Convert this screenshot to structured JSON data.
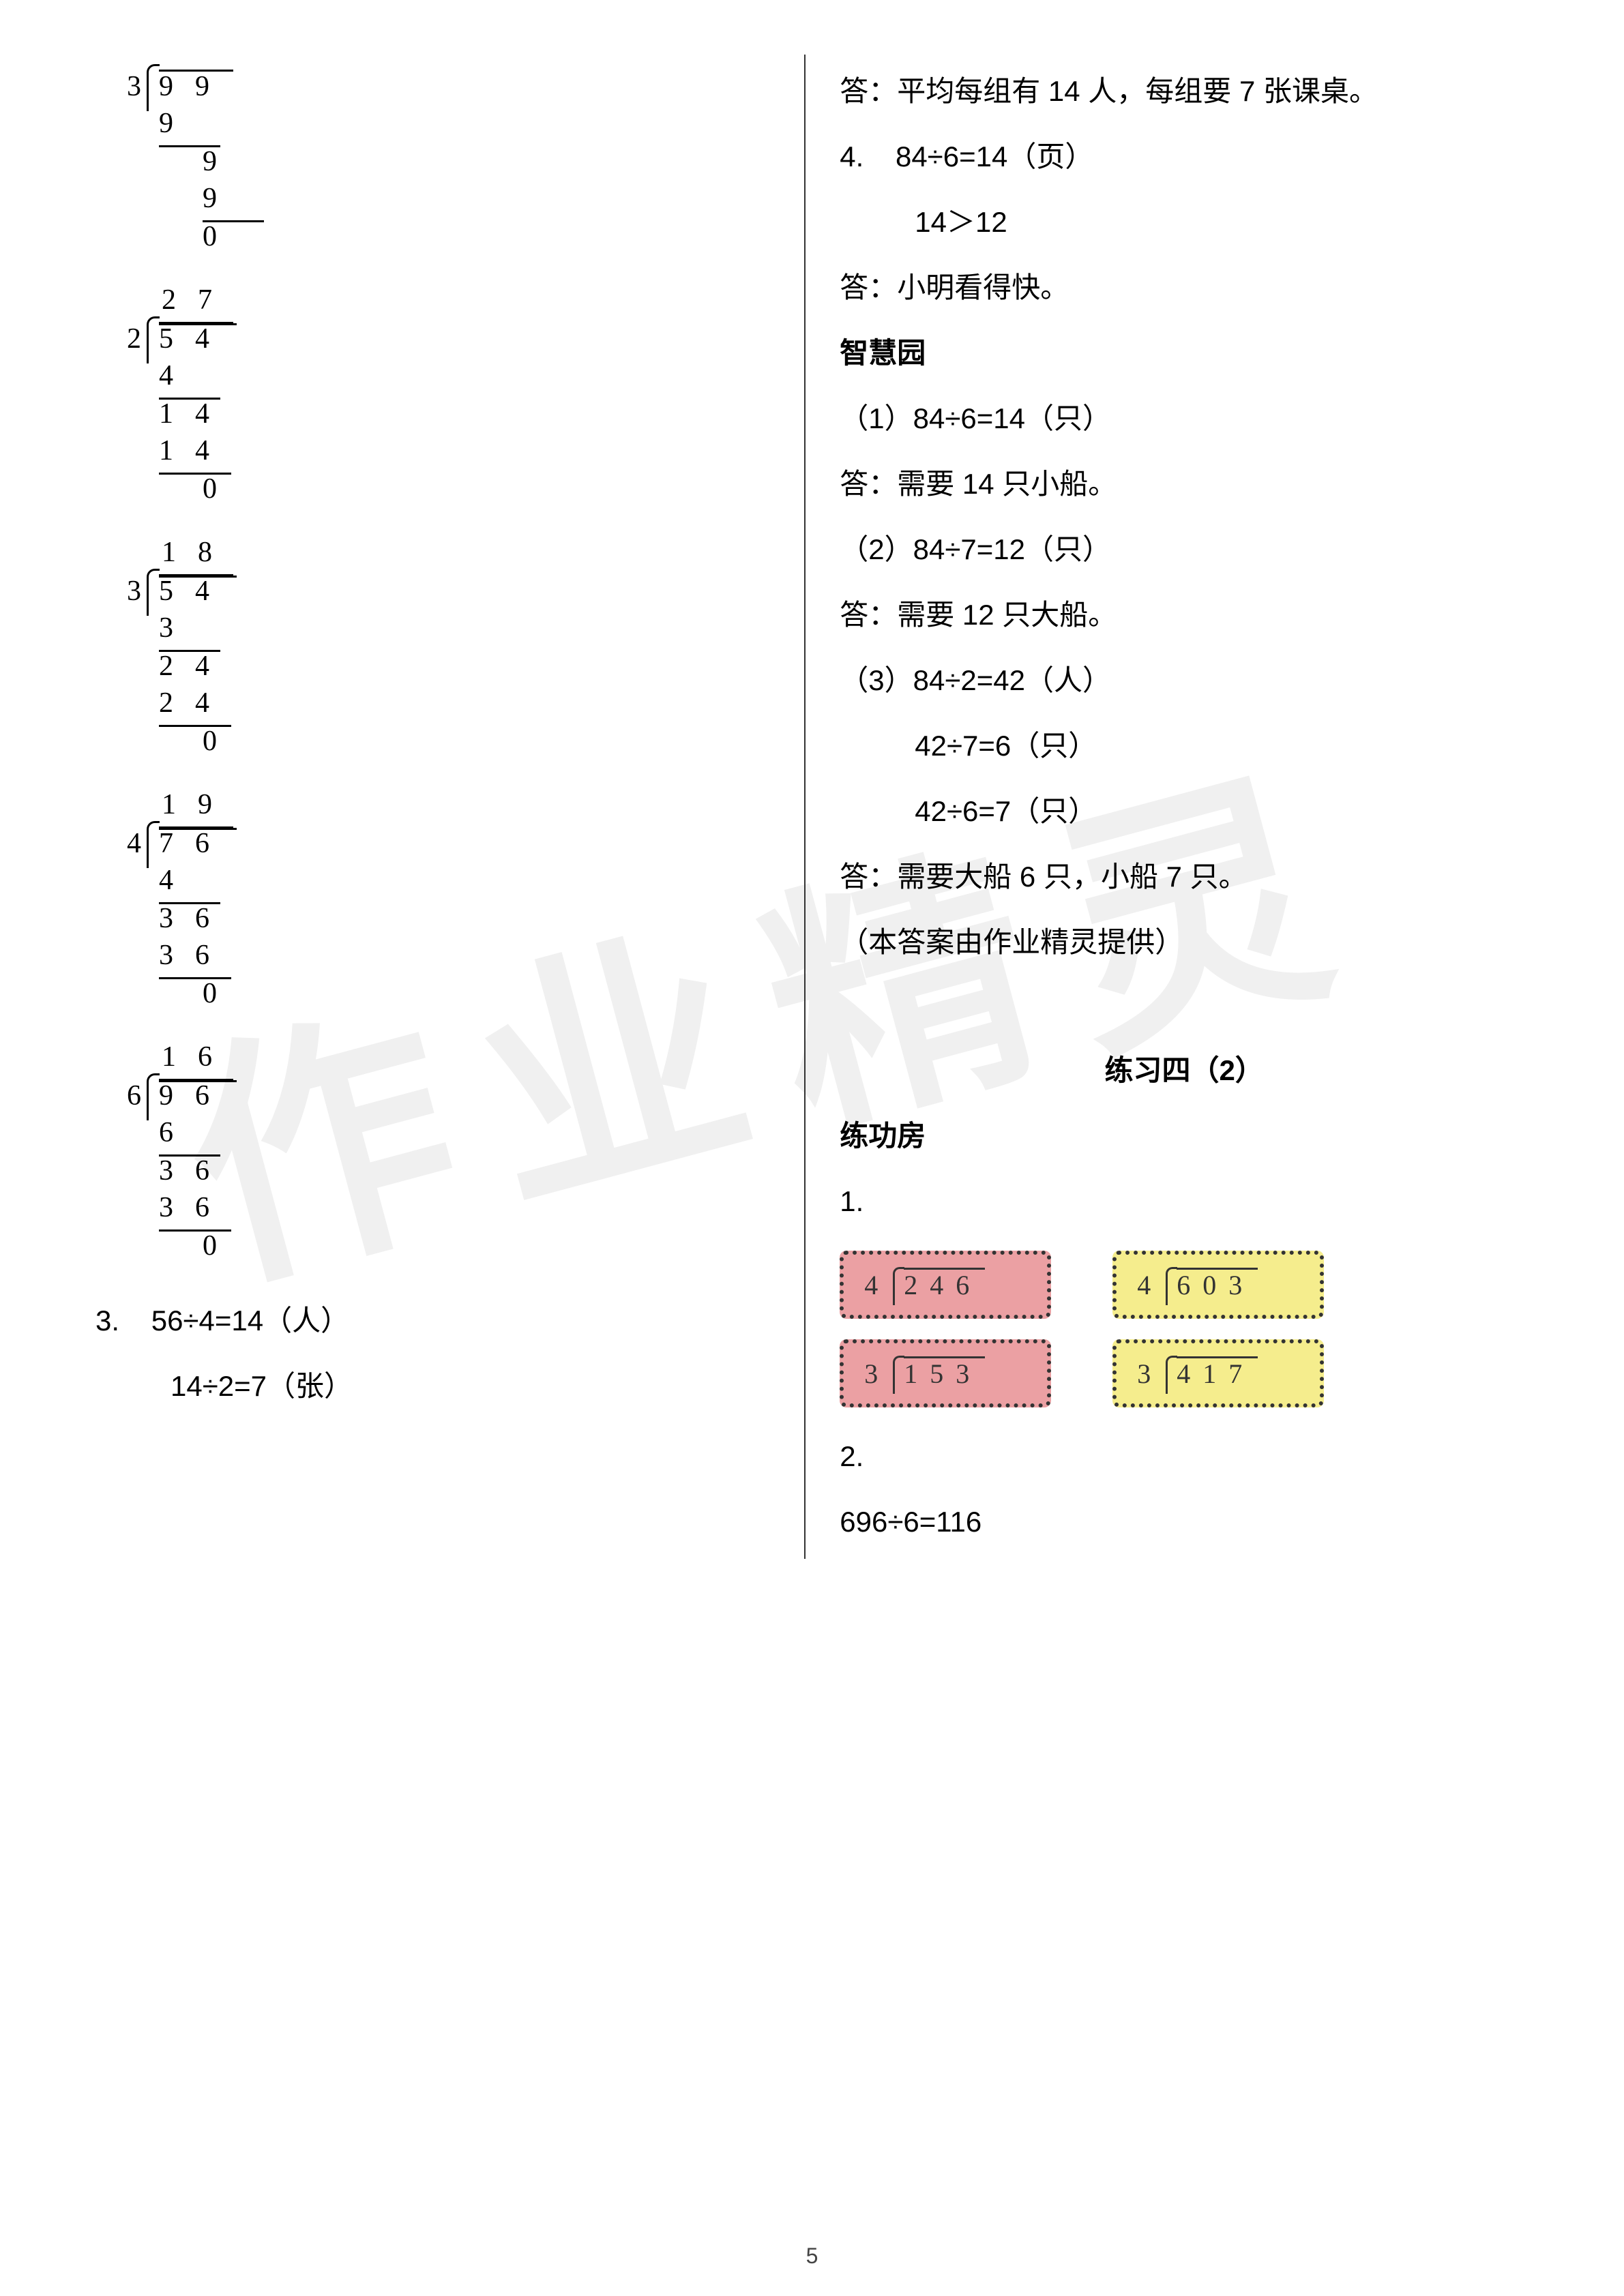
{
  "watermark": "作业精灵",
  "pageNumber": "5",
  "leftColumn": {
    "longDivisions": [
      {
        "divisor": "3",
        "dividend": "99",
        "quotientDisplay": "",
        "work": [
          {
            "text": "9",
            "indent": 0,
            "underline": true
          },
          {
            "text": "9",
            "indent": 1,
            "underline": false
          },
          {
            "text": "9",
            "indent": 1,
            "underline": true
          },
          {
            "text": "0",
            "indent": 1,
            "underline": false
          }
        ]
      },
      {
        "divisor": "2",
        "dividend": "54",
        "quotientDisplay": "27",
        "work": [
          {
            "text": "4",
            "indent": 0,
            "underline": true
          },
          {
            "text": "14",
            "indent": 0,
            "underline": false
          },
          {
            "text": "14",
            "indent": 0,
            "underline": true
          },
          {
            "text": "0",
            "indent": 1,
            "underline": false
          }
        ]
      },
      {
        "divisor": "3",
        "dividend": "54",
        "quotientDisplay": "18",
        "work": [
          {
            "text": "3",
            "indent": 0,
            "underline": true
          },
          {
            "text": "24",
            "indent": 0,
            "underline": false
          },
          {
            "text": "24",
            "indent": 0,
            "underline": true
          },
          {
            "text": "0",
            "indent": 1,
            "underline": false
          }
        ]
      },
      {
        "divisor": "4",
        "dividend": "76",
        "quotientDisplay": "19",
        "work": [
          {
            "text": "4",
            "indent": 0,
            "underline": true
          },
          {
            "text": "36",
            "indent": 0,
            "underline": false
          },
          {
            "text": "36",
            "indent": 0,
            "underline": true
          },
          {
            "text": "0",
            "indent": 1,
            "underline": false
          }
        ]
      },
      {
        "divisor": "6",
        "dividend": "96",
        "quotientDisplay": "16",
        "work": [
          {
            "text": "6",
            "indent": 0,
            "underline": true
          },
          {
            "text": "36",
            "indent": 0,
            "underline": false
          },
          {
            "text": "36",
            "indent": 0,
            "underline": true
          },
          {
            "text": "0",
            "indent": 1,
            "underline": false
          }
        ]
      }
    ],
    "problem3": {
      "label": "3.",
      "line1": "56÷4=14（人）",
      "line2": "14÷2=7（张）"
    }
  },
  "rightColumn": {
    "answer1": "答：平均每组有 14 人，每组要 7 张课桌。",
    "problem4": {
      "label": "4.",
      "line1": "84÷6=14（页）",
      "line2": "14＞12",
      "answer": "答：小明看得快。"
    },
    "sectionTitle1": "智慧园",
    "wisdom": {
      "item1_eq": "（1）84÷6=14（只）",
      "item1_ans": "答：需要 14 只小船。",
      "item2_eq": "（2）84÷7=12（只）",
      "item2_ans": "答：需要 12 只大船。",
      "item3_eq": "（3）84÷2=42（人）",
      "item3_sub1": "42÷7=6（只）",
      "item3_sub2": "42÷6=7（只）",
      "item3_ans": "答：需要大船 6 只，小船 7 只。"
    },
    "credit": "（本答案由作业精灵提供）",
    "practiceTitle": "练习四（2）",
    "sectionTitle2": "练功房",
    "q1Label": "1.",
    "divisionBoxes": [
      {
        "divisor": "4",
        "dividend": "246",
        "color": "pink"
      },
      {
        "divisor": "4",
        "dividend": "603",
        "color": "yellow"
      },
      {
        "divisor": "3",
        "dividend": "153",
        "color": "pink"
      },
      {
        "divisor": "3",
        "dividend": "417",
        "color": "yellow"
      }
    ],
    "q2Label": "2.",
    "q2Line": "696÷6=116"
  }
}
